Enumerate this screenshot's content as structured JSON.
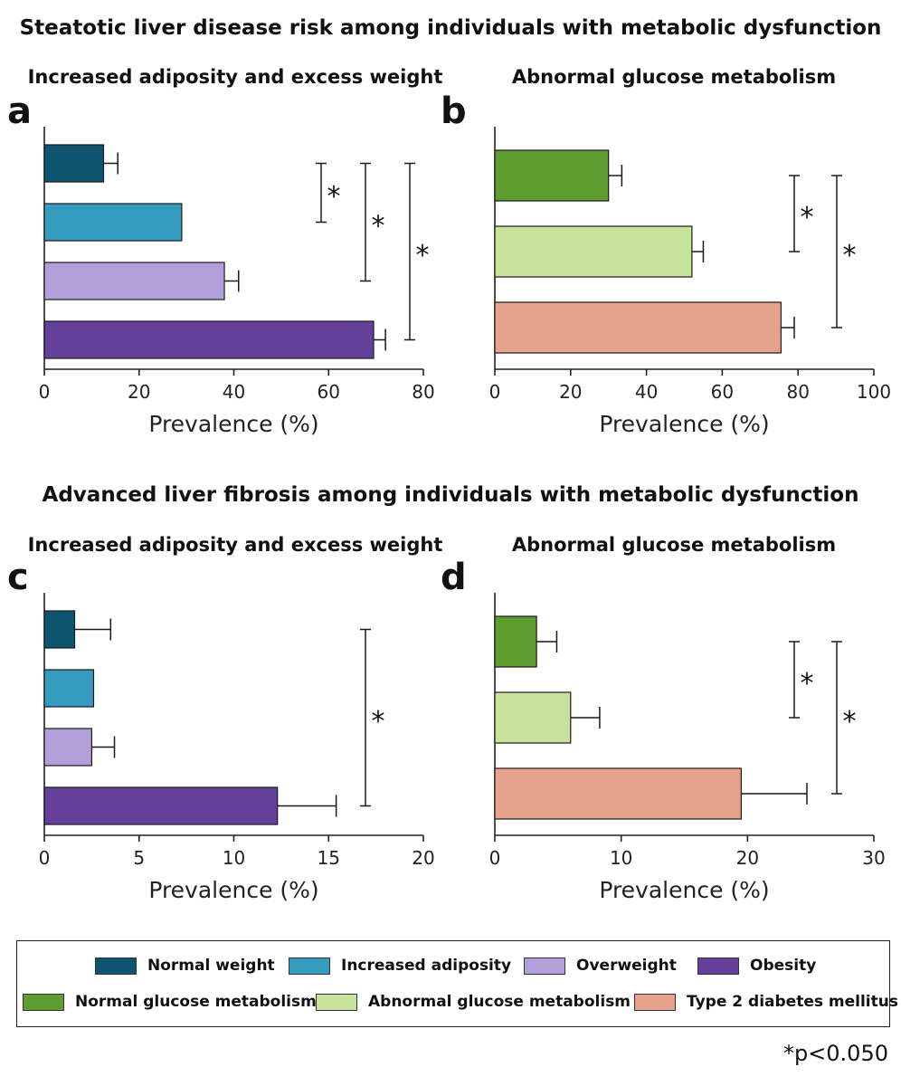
{
  "sections": {
    "top_title": "Steatotic liver disease risk among individuals with metabolic dysfunction",
    "bottom_title": "Advanced liver fibrosis among individuals with metabolic dysfunction"
  },
  "legend": {
    "items": [
      {
        "label": "Normal weight",
        "color": "#0e5470"
      },
      {
        "label": "Increased adiposity",
        "color": "#359cc0"
      },
      {
        "label": "Overweight",
        "color": "#b39fd9"
      },
      {
        "label": "Obesity",
        "color": "#64409b"
      },
      {
        "label": "Normal glucose metabolism",
        "color": "#5e9c30"
      },
      {
        "label": "Abnormal glucose metabolism",
        "color": "#c7e39b"
      },
      {
        "label": "Type 2 diabetes mellitus",
        "color": "#e6a28d"
      }
    ]
  },
  "footnote": "*p<0.050",
  "chart_data": [
    {
      "panel": "a",
      "type": "bar",
      "orientation": "horizontal",
      "title": "Increased adiposity and excess weight",
      "xlabel": "Prevalence (%)",
      "xlim": [
        0,
        80
      ],
      "xticks": [
        0,
        20,
        40,
        60,
        80
      ],
      "categories": [
        "Normal weight",
        "Increased adiposity",
        "Overweight",
        "Obesity"
      ],
      "values": [
        12.5,
        29,
        38,
        69.5
      ],
      "errors": [
        3,
        0,
        3,
        2.5
      ],
      "colors": [
        "#0e5470",
        "#359cc0",
        "#b39fd9",
        "#64409b"
      ],
      "significance": [
        {
          "from": 0,
          "to": 1,
          "label": "*"
        },
        {
          "from": 0,
          "to": 2,
          "label": "*"
        },
        {
          "from": 0,
          "to": 3,
          "label": "*"
        }
      ]
    },
    {
      "panel": "b",
      "type": "bar",
      "orientation": "horizontal",
      "title": "Abnormal glucose metabolism",
      "xlabel": "Prevalence (%)",
      "xlim": [
        0,
        100
      ],
      "xticks": [
        0,
        20,
        40,
        60,
        80,
        100
      ],
      "categories": [
        "Normal glucose metabolism",
        "Abnormal glucose metabolism",
        "Type 2 diabetes mellitus"
      ],
      "values": [
        30,
        52,
        75.5
      ],
      "errors": [
        3.5,
        3,
        3.5
      ],
      "colors": [
        "#5e9c30",
        "#c7e39b",
        "#e6a28d"
      ],
      "significance": [
        {
          "from": 0,
          "to": 1,
          "label": "*"
        },
        {
          "from": 0,
          "to": 2,
          "label": "*"
        }
      ]
    },
    {
      "panel": "c",
      "type": "bar",
      "orientation": "horizontal",
      "title": "Increased adiposity and excess weight",
      "xlabel": "Prevalence (%)",
      "xlim": [
        0,
        20
      ],
      "xticks": [
        0,
        5,
        10,
        15,
        20
      ],
      "categories": [
        "Normal weight",
        "Increased adiposity",
        "Overweight",
        "Obesity"
      ],
      "values": [
        1.6,
        2.6,
        2.5,
        12.3
      ],
      "errors": [
        1.9,
        0,
        1.2,
        3.1
      ],
      "colors": [
        "#0e5470",
        "#359cc0",
        "#b39fd9",
        "#64409b"
      ],
      "significance": [
        {
          "from": 0,
          "to": 3,
          "label": "*"
        }
      ]
    },
    {
      "panel": "d",
      "type": "bar",
      "orientation": "horizontal",
      "title": "Abnormal glucose metabolism",
      "xlabel": "Prevalence (%)",
      "xlim": [
        0,
        30
      ],
      "xticks": [
        0,
        10,
        20,
        30
      ],
      "categories": [
        "Normal glucose metabolism",
        "Abnormal glucose metabolism",
        "Type 2 diabetes mellitus"
      ],
      "values": [
        3.3,
        6,
        19.5
      ],
      "errors": [
        1.6,
        2.3,
        5.2
      ],
      "colors": [
        "#5e9c30",
        "#c7e39b",
        "#e6a28d"
      ],
      "significance": [
        {
          "from": 0,
          "to": 1,
          "label": "*"
        },
        {
          "from": 0,
          "to": 2,
          "label": "*"
        }
      ]
    }
  ]
}
